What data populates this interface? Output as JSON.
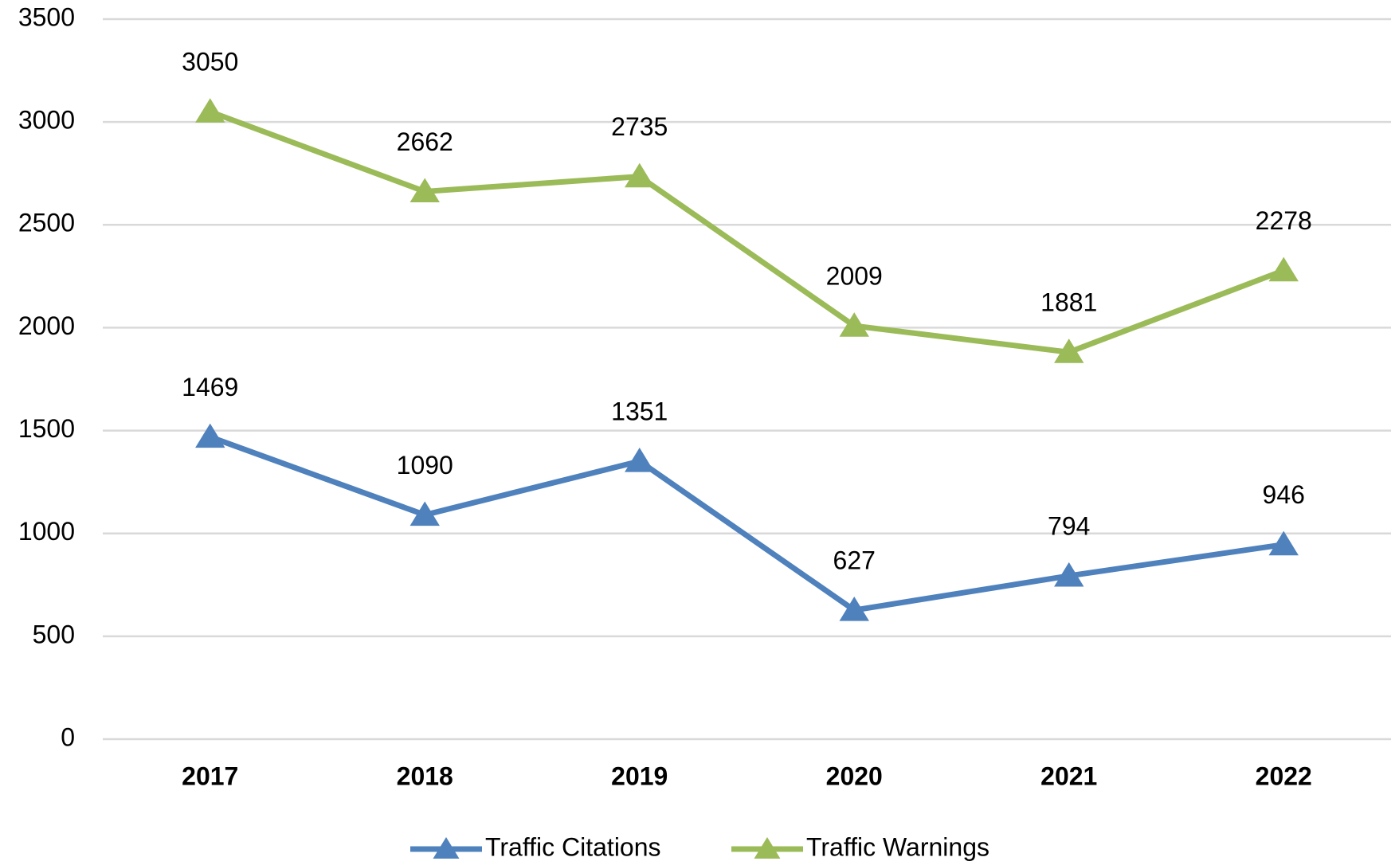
{
  "chart_data": {
    "type": "line",
    "categories": [
      "2017",
      "2018",
      "2019",
      "2020",
      "2021",
      "2022"
    ],
    "series": [
      {
        "name": "Traffic Citations",
        "color": "#4f81bd",
        "values": [
          1469,
          1090,
          1351,
          627,
          794,
          946
        ]
      },
      {
        "name": "Traffic Warnings",
        "color": "#9bbb59",
        "values": [
          3050,
          2662,
          2735,
          2009,
          1881,
          2278
        ]
      }
    ],
    "ylim": [
      0,
      3500
    ],
    "yticks": [
      0,
      500,
      1000,
      1500,
      2000,
      2500,
      3000,
      3500
    ],
    "grid": true,
    "legend": "bottom",
    "marker": "triangle"
  }
}
